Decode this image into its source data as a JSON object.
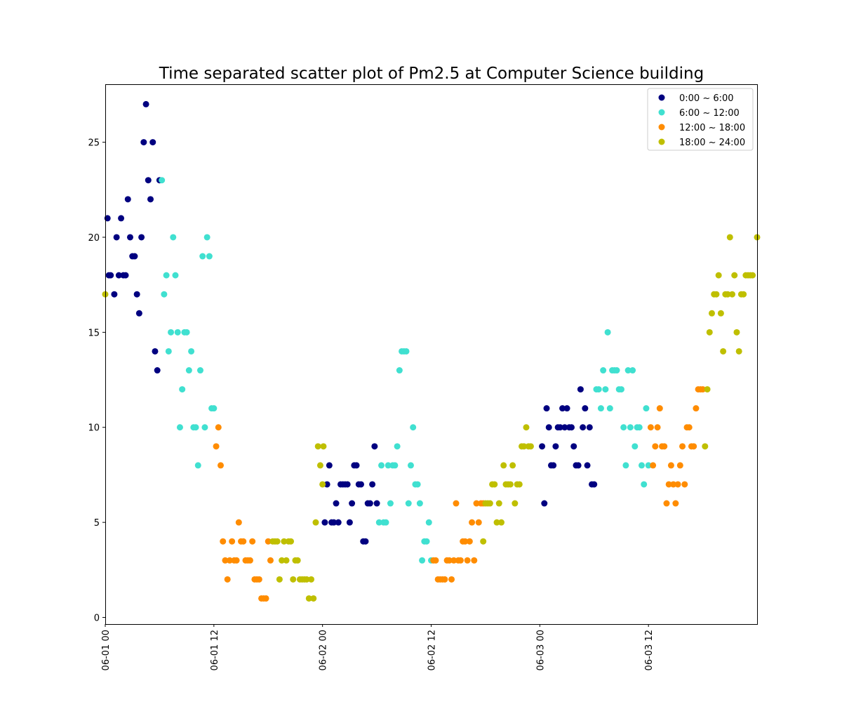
{
  "chart_data": {
    "type": "scatter",
    "title": "Time separated scatter plot of Pm2.5 at Computer Science building",
    "xlabel": "",
    "ylabel": "",
    "x_unit": "hours since 06-01 00",
    "xlim": [
      0,
      72
    ],
    "ylim": [
      -0.35,
      28.05
    ],
    "grid": false,
    "legend_position": "top-right",
    "x_ticks": [
      {
        "value": 0,
        "label": "06-01 00"
      },
      {
        "value": 12,
        "label": "06-01 12"
      },
      {
        "value": 24,
        "label": "06-02 00"
      },
      {
        "value": 36,
        "label": "06-02 12"
      },
      {
        "value": 48,
        "label": "06-03 00"
      },
      {
        "value": 60,
        "label": "06-03 12"
      }
    ],
    "y_ticks": [
      {
        "value": 0,
        "label": "0"
      },
      {
        "value": 5,
        "label": "5"
      },
      {
        "value": 10,
        "label": "10"
      },
      {
        "value": 15,
        "label": "15"
      },
      {
        "value": 20,
        "label": "20"
      },
      {
        "value": 25,
        "label": "25"
      }
    ],
    "series": [
      {
        "name": "0:00 ~ 6:00",
        "color": "#000080",
        "points": [
          [
            0.25,
            21
          ],
          [
            0.4,
            18
          ],
          [
            0.6,
            18
          ],
          [
            1.0,
            17
          ],
          [
            1.25,
            20
          ],
          [
            1.5,
            18
          ],
          [
            1.75,
            21
          ],
          [
            2.0,
            18
          ],
          [
            2.25,
            18
          ],
          [
            2.5,
            22
          ],
          [
            2.75,
            20
          ],
          [
            3.0,
            19
          ],
          [
            3.25,
            19
          ],
          [
            3.5,
            17
          ],
          [
            3.75,
            16
          ],
          [
            4.0,
            20
          ],
          [
            4.25,
            25
          ],
          [
            4.5,
            27
          ],
          [
            4.75,
            23
          ],
          [
            5.0,
            22
          ],
          [
            5.25,
            25
          ],
          [
            5.5,
            14
          ],
          [
            5.75,
            13
          ],
          [
            6.0,
            23
          ],
          [
            24.25,
            5
          ],
          [
            24.5,
            7
          ],
          [
            24.75,
            8
          ],
          [
            25.0,
            5
          ],
          [
            25.25,
            5
          ],
          [
            25.5,
            6
          ],
          [
            25.75,
            5
          ],
          [
            26.0,
            7
          ],
          [
            26.25,
            7
          ],
          [
            26.5,
            7
          ],
          [
            26.75,
            7
          ],
          [
            27.0,
            5
          ],
          [
            27.25,
            6
          ],
          [
            27.5,
            8
          ],
          [
            27.75,
            8
          ],
          [
            28.0,
            7
          ],
          [
            28.25,
            7
          ],
          [
            28.5,
            4
          ],
          [
            28.75,
            4
          ],
          [
            29.0,
            6
          ],
          [
            29.25,
            6
          ],
          [
            29.5,
            7
          ],
          [
            29.75,
            9
          ],
          [
            30.0,
            6
          ],
          [
            48.25,
            9
          ],
          [
            48.5,
            6
          ],
          [
            48.75,
            11
          ],
          [
            49.0,
            10
          ],
          [
            49.25,
            8
          ],
          [
            49.5,
            8
          ],
          [
            49.75,
            9
          ],
          [
            50.0,
            10
          ],
          [
            50.25,
            10
          ],
          [
            50.5,
            11
          ],
          [
            50.75,
            10
          ],
          [
            51.0,
            11
          ],
          [
            51.25,
            10
          ],
          [
            51.5,
            10
          ],
          [
            51.75,
            9
          ],
          [
            52.0,
            8
          ],
          [
            52.25,
            8
          ],
          [
            52.5,
            12
          ],
          [
            52.75,
            10
          ],
          [
            53.0,
            11
          ],
          [
            53.25,
            8
          ],
          [
            53.5,
            10
          ],
          [
            53.75,
            7
          ],
          [
            54.0,
            7
          ]
        ]
      },
      {
        "name": "6:00 ~ 12:00",
        "color": "#40e0d0",
        "points": [
          [
            6.25,
            23
          ],
          [
            6.5,
            17
          ],
          [
            6.75,
            18
          ],
          [
            7.0,
            14
          ],
          [
            7.25,
            15
          ],
          [
            7.5,
            20
          ],
          [
            7.75,
            18
          ],
          [
            8.0,
            15
          ],
          [
            8.25,
            10
          ],
          [
            8.5,
            12
          ],
          [
            8.75,
            15
          ],
          [
            9.0,
            15
          ],
          [
            9.25,
            13
          ],
          [
            9.5,
            14
          ],
          [
            9.75,
            10
          ],
          [
            10.0,
            10
          ],
          [
            10.25,
            8
          ],
          [
            10.5,
            13
          ],
          [
            10.75,
            19
          ],
          [
            11.0,
            10
          ],
          [
            11.25,
            20
          ],
          [
            11.5,
            19
          ],
          [
            11.75,
            11
          ],
          [
            12.0,
            11
          ],
          [
            30.25,
            5
          ],
          [
            30.5,
            8
          ],
          [
            30.75,
            5
          ],
          [
            31.0,
            5
          ],
          [
            31.25,
            8
          ],
          [
            31.5,
            6
          ],
          [
            31.75,
            8
          ],
          [
            32.0,
            8
          ],
          [
            32.25,
            9
          ],
          [
            32.5,
            13
          ],
          [
            32.75,
            14
          ],
          [
            33.0,
            14
          ],
          [
            33.25,
            14
          ],
          [
            33.5,
            6
          ],
          [
            33.75,
            8
          ],
          [
            34.0,
            10
          ],
          [
            34.25,
            7
          ],
          [
            34.5,
            7
          ],
          [
            34.75,
            6
          ],
          [
            35.0,
            3
          ],
          [
            35.25,
            4
          ],
          [
            35.5,
            4
          ],
          [
            35.75,
            5
          ],
          [
            36.0,
            3
          ],
          [
            54.25,
            12
          ],
          [
            54.5,
            12
          ],
          [
            54.75,
            11
          ],
          [
            55.0,
            13
          ],
          [
            55.25,
            12
          ],
          [
            55.5,
            15
          ],
          [
            55.75,
            11
          ],
          [
            56.0,
            13
          ],
          [
            56.25,
            13
          ],
          [
            56.5,
            13
          ],
          [
            56.75,
            12
          ],
          [
            57.0,
            12
          ],
          [
            57.25,
            10
          ],
          [
            57.5,
            8
          ],
          [
            57.75,
            13
          ],
          [
            58.0,
            10
          ],
          [
            58.25,
            13
          ],
          [
            58.5,
            9
          ],
          [
            58.75,
            10
          ],
          [
            59.0,
            10
          ],
          [
            59.25,
            8
          ],
          [
            59.5,
            7
          ],
          [
            59.75,
            11
          ],
          [
            60.0,
            8
          ]
        ]
      },
      {
        "name": "12:00 ~ 18:00",
        "color": "#ff8c00",
        "points": [
          [
            12.25,
            9
          ],
          [
            12.5,
            10
          ],
          [
            12.75,
            8
          ],
          [
            13.0,
            4
          ],
          [
            13.25,
            3
          ],
          [
            13.5,
            2
          ],
          [
            13.75,
            3
          ],
          [
            14.0,
            4
          ],
          [
            14.25,
            3
          ],
          [
            14.5,
            3
          ],
          [
            14.75,
            5
          ],
          [
            15.0,
            4
          ],
          [
            15.25,
            4
          ],
          [
            15.5,
            3
          ],
          [
            15.75,
            3
          ],
          [
            16.0,
            3
          ],
          [
            16.25,
            4
          ],
          [
            16.5,
            2
          ],
          [
            16.75,
            2
          ],
          [
            17.0,
            2
          ],
          [
            17.25,
            1
          ],
          [
            17.5,
            1
          ],
          [
            17.75,
            1
          ],
          [
            18.0,
            4
          ],
          [
            18.25,
            3
          ],
          [
            36.25,
            3
          ],
          [
            36.5,
            3
          ],
          [
            36.75,
            2
          ],
          [
            37.0,
            2
          ],
          [
            37.25,
            2
          ],
          [
            37.5,
            2
          ],
          [
            37.75,
            3
          ],
          [
            38.0,
            3
          ],
          [
            38.25,
            2
          ],
          [
            38.5,
            3
          ],
          [
            38.75,
            6
          ],
          [
            39.0,
            3
          ],
          [
            39.25,
            3
          ],
          [
            39.5,
            4
          ],
          [
            39.75,
            4
          ],
          [
            40.0,
            3
          ],
          [
            40.25,
            4
          ],
          [
            40.5,
            5
          ],
          [
            40.75,
            3
          ],
          [
            41.0,
            6
          ],
          [
            41.25,
            5
          ],
          [
            41.5,
            6
          ],
          [
            41.75,
            6
          ],
          [
            60.25,
            10
          ],
          [
            60.5,
            8
          ],
          [
            60.75,
            9
          ],
          [
            61.0,
            10
          ],
          [
            61.25,
            11
          ],
          [
            61.5,
            9
          ],
          [
            61.75,
            9
          ],
          [
            62.0,
            6
          ],
          [
            62.25,
            7
          ],
          [
            62.5,
            8
          ],
          [
            62.75,
            7
          ],
          [
            63.0,
            6
          ],
          [
            63.25,
            7
          ],
          [
            63.5,
            8
          ],
          [
            63.75,
            9
          ],
          [
            64.0,
            7
          ],
          [
            64.25,
            10
          ],
          [
            64.5,
            10
          ],
          [
            64.75,
            9
          ],
          [
            65.0,
            9
          ],
          [
            65.25,
            11
          ],
          [
            65.5,
            12
          ],
          [
            65.75,
            12
          ],
          [
            66.0,
            12
          ]
        ]
      },
      {
        "name": "18:00 ~ 24:00",
        "color": "#bfbf00",
        "points": [
          [
            0.0,
            17
          ],
          [
            18.5,
            4
          ],
          [
            18.75,
            4
          ],
          [
            19.0,
            4
          ],
          [
            19.25,
            2
          ],
          [
            19.5,
            3
          ],
          [
            19.75,
            4
          ],
          [
            20.0,
            3
          ],
          [
            20.25,
            4
          ],
          [
            20.5,
            4
          ],
          [
            20.75,
            2
          ],
          [
            21.0,
            3
          ],
          [
            21.25,
            3
          ],
          [
            21.5,
            2
          ],
          [
            21.75,
            2
          ],
          [
            22.0,
            2
          ],
          [
            22.25,
            2
          ],
          [
            22.5,
            1
          ],
          [
            22.75,
            2
          ],
          [
            23.0,
            1
          ],
          [
            23.25,
            5
          ],
          [
            23.5,
            9
          ],
          [
            23.75,
            8
          ],
          [
            24.0,
            7
          ],
          [
            24.1,
            9
          ],
          [
            41.75,
            4
          ],
          [
            42.0,
            6
          ],
          [
            42.25,
            6
          ],
          [
            42.5,
            6
          ],
          [
            42.75,
            7
          ],
          [
            43.0,
            7
          ],
          [
            43.25,
            5
          ],
          [
            43.5,
            6
          ],
          [
            43.75,
            5
          ],
          [
            44.0,
            8
          ],
          [
            44.25,
            7
          ],
          [
            44.5,
            7
          ],
          [
            44.75,
            7
          ],
          [
            45.0,
            8
          ],
          [
            45.25,
            6
          ],
          [
            45.5,
            7
          ],
          [
            45.75,
            7
          ],
          [
            46.0,
            9
          ],
          [
            46.25,
            9
          ],
          [
            46.5,
            10
          ],
          [
            46.75,
            9
          ],
          [
            47.0,
            9
          ],
          [
            66.25,
            9
          ],
          [
            66.5,
            12
          ],
          [
            66.75,
            15
          ],
          [
            67.0,
            16
          ],
          [
            67.25,
            17
          ],
          [
            67.5,
            17
          ],
          [
            67.75,
            18
          ],
          [
            68.0,
            16
          ],
          [
            68.25,
            14
          ],
          [
            68.5,
            17
          ],
          [
            68.75,
            17
          ],
          [
            69.0,
            20
          ],
          [
            69.25,
            17
          ],
          [
            69.5,
            18
          ],
          [
            69.75,
            15
          ],
          [
            70.0,
            14
          ],
          [
            70.25,
            17
          ],
          [
            70.5,
            17
          ],
          [
            70.75,
            18
          ],
          [
            71.0,
            18
          ],
          [
            71.25,
            18
          ],
          [
            71.5,
            18
          ],
          [
            72.0,
            20
          ]
        ]
      }
    ]
  }
}
